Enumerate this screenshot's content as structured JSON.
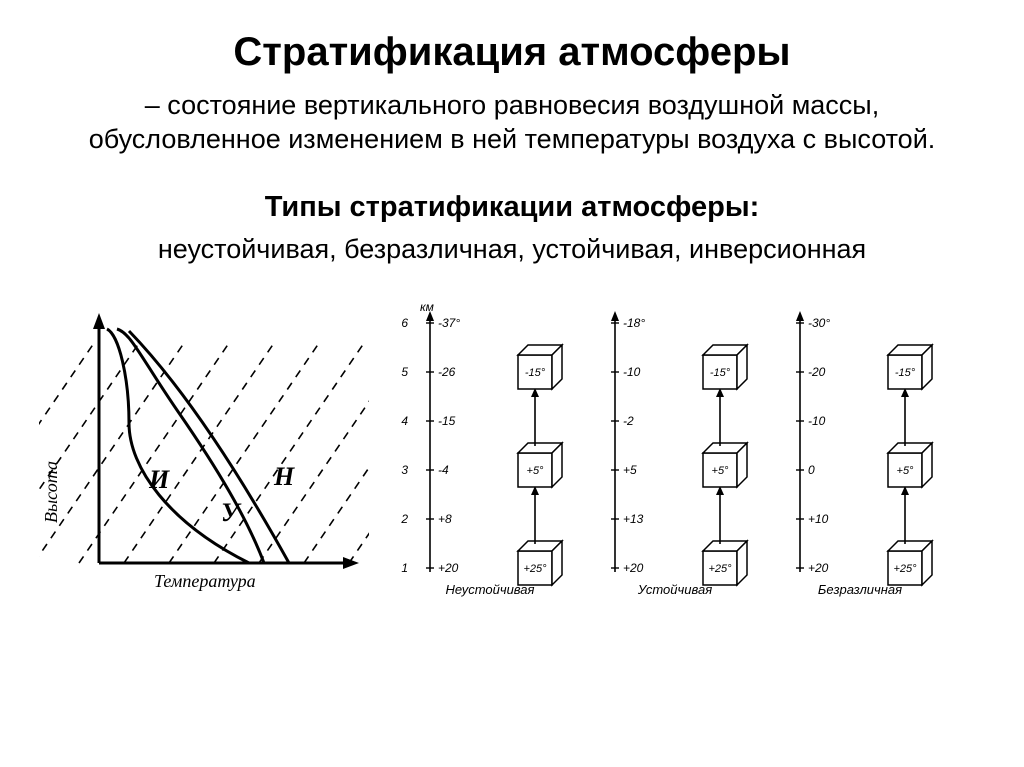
{
  "title": "Стратификация атмосферы",
  "definition": "– состояние вертикального равновесия воздушной массы, обусловленное изменением в ней температуры воздуха с высотой.",
  "subtitle": "Типы стратификации атмосферы:",
  "types_list": "неустойчивая, безразличная, устойчивая, инверсионная",
  "left_chart": {
    "y_label": "Высота",
    "x_label": "Температура",
    "curve_labels": {
      "I": "И",
      "U": "У",
      "N": "Н"
    },
    "stroke": "#000000",
    "stroke_width": 2.2,
    "dash": "8 7"
  },
  "right_chart": {
    "y_unit": "км",
    "y_ticks": [
      1,
      2,
      3,
      4,
      5,
      6
    ],
    "columns": [
      {
        "name": "Неустойчивая",
        "temps": [
          "+20",
          "+8",
          "-4",
          "-15",
          "-26",
          "-37°"
        ],
        "boxes": [
          {
            "level": 1,
            "label": "+25°"
          },
          {
            "level": 3,
            "label": "+5°"
          },
          {
            "level": 5,
            "label": "-15°"
          }
        ]
      },
      {
        "name": "Устойчивая",
        "temps": [
          "+20",
          "+13",
          "+5",
          "-2",
          "-10",
          "-18°"
        ],
        "boxes": [
          {
            "level": 1,
            "label": "+25°"
          },
          {
            "level": 3,
            "label": "+5°"
          },
          {
            "level": 5,
            "label": "-15°"
          }
        ]
      },
      {
        "name": "Безразличная",
        "temps": [
          "+20",
          "+10",
          "0",
          "-10",
          "-20",
          "-30°"
        ],
        "boxes": [
          {
            "level": 1,
            "label": "+25°"
          },
          {
            "level": 3,
            "label": "+5°"
          },
          {
            "level": 5,
            "label": "-15°"
          }
        ]
      }
    ],
    "stroke": "#000000",
    "font_size": 12
  }
}
